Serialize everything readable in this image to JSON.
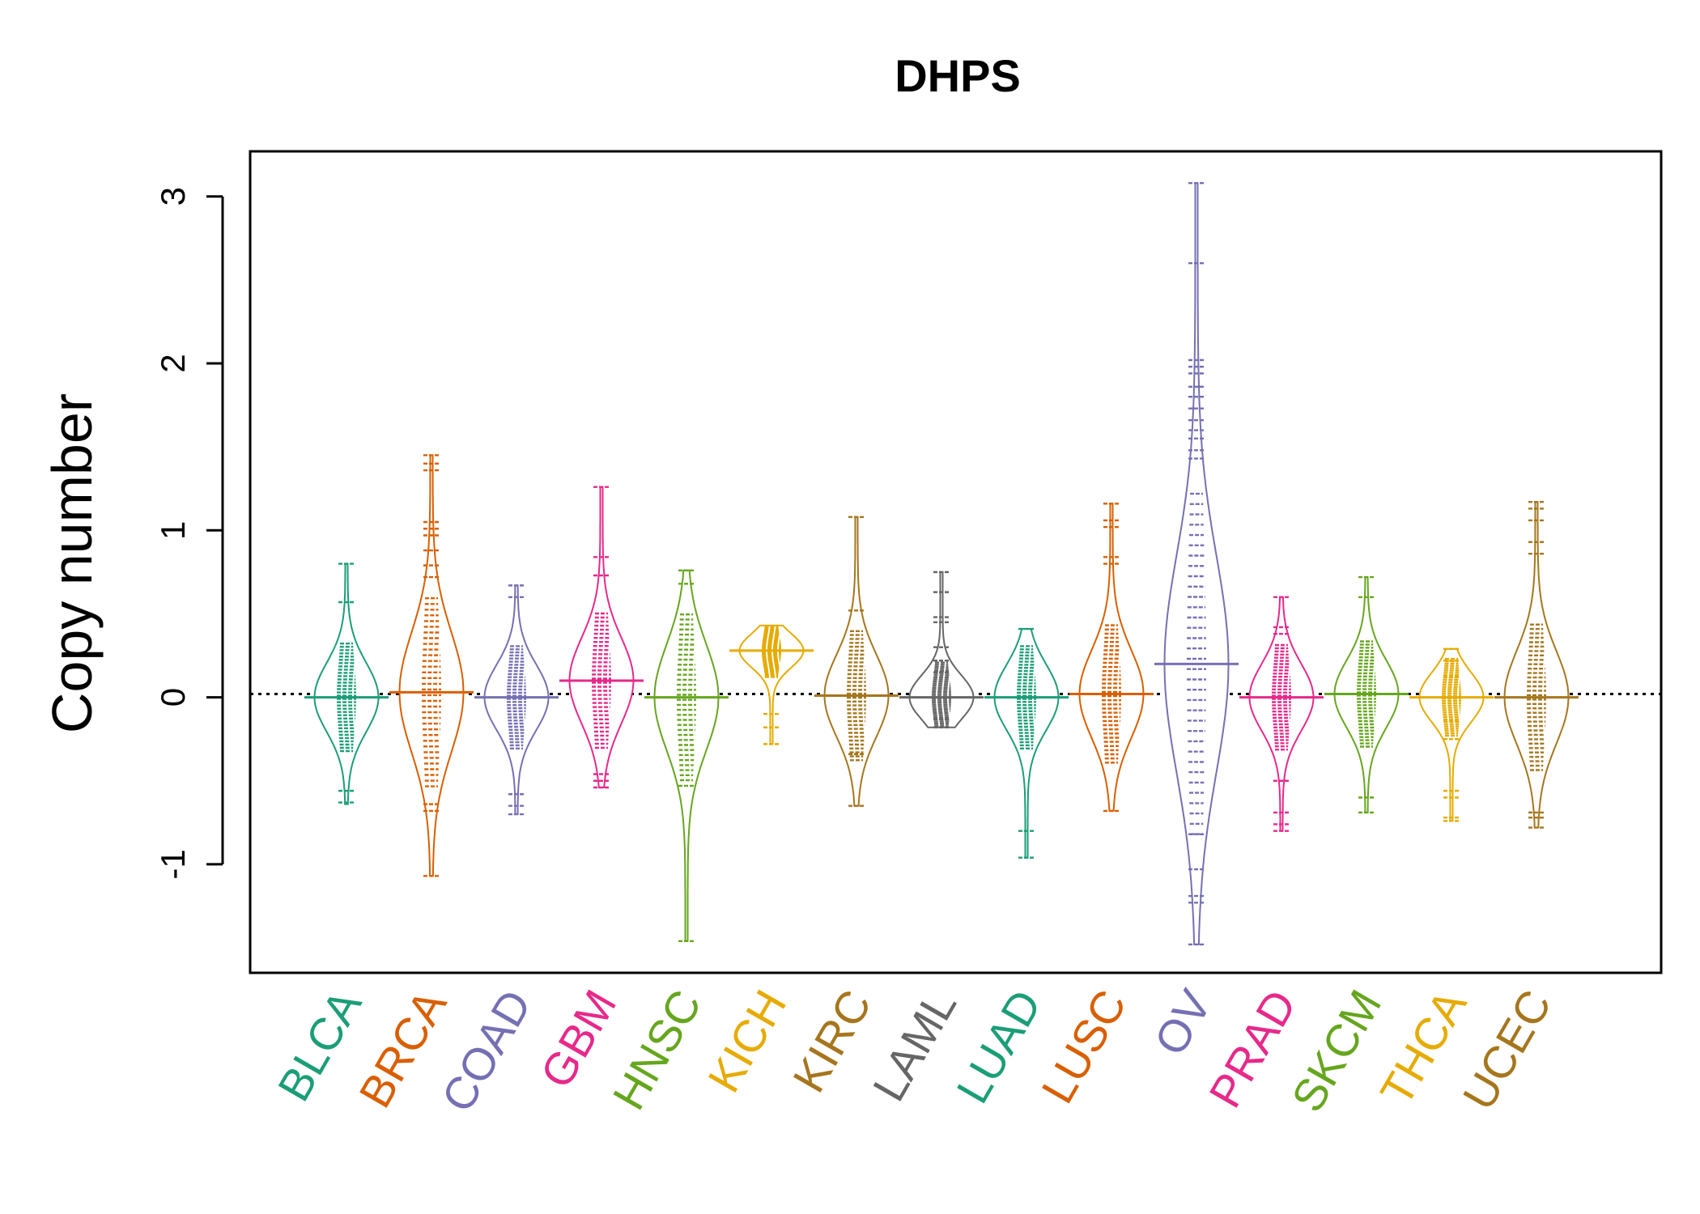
{
  "chart_data": {
    "type": "beanplot",
    "title": "DHPS",
    "xlabel": "",
    "ylabel": "Copy number",
    "ylim": [
      -1.65,
      3.27
    ],
    "yticks": [
      -1,
      0,
      1,
      2,
      3
    ],
    "ytick_labels": [
      "-1",
      "0",
      "1",
      "2",
      "3"
    ],
    "reference_line": 0.02,
    "grid": false,
    "legend": "none",
    "categories": [
      "BLCA",
      "BRCA",
      "COAD",
      "GBM",
      "HNSC",
      "KICH",
      "KIRC",
      "LAML",
      "LUAD",
      "LUSC",
      "OV",
      "PRAD",
      "SKCM",
      "THCA",
      "UCEC"
    ],
    "series": [
      {
        "category": "BLCA",
        "color": "#1B9E77",
        "center": 0.0,
        "min": -0.64,
        "max": 0.8,
        "outliers": [
          0.8,
          0.57,
          -0.56,
          -0.63
        ]
      },
      {
        "category": "BRCA",
        "color": "#D95F02",
        "center": 0.03,
        "min": -1.07,
        "max": 1.45,
        "outliers": [
          1.45,
          1.4,
          1.36,
          1.05,
          1.01,
          0.97,
          0.88,
          0.79,
          0.72,
          -0.64,
          -0.68,
          -1.07
        ]
      },
      {
        "category": "COAD",
        "color": "#7570B3",
        "center": 0.0,
        "min": -0.7,
        "max": 0.67,
        "outliers": [
          0.67,
          0.6,
          -0.58,
          -0.65,
          -0.7
        ]
      },
      {
        "category": "GBM",
        "color": "#E7298A",
        "center": 0.1,
        "min": -0.54,
        "max": 1.26,
        "outliers": [
          1.26,
          0.84,
          0.73,
          -0.46,
          -0.5,
          -0.54
        ]
      },
      {
        "category": "HNSC",
        "color": "#66A61E",
        "center": 0.0,
        "min": -1.46,
        "max": 0.76,
        "outliers": [
          0.76,
          0.68,
          -0.53,
          -1.46
        ]
      },
      {
        "category": "KICH",
        "color": "#E6AB02",
        "center": 0.28,
        "min": -0.28,
        "max": 0.43,
        "outliers": [
          -0.1,
          -0.18,
          -0.28
        ]
      },
      {
        "category": "KIRC",
        "color": "#A6761D",
        "center": 0.01,
        "min": -0.65,
        "max": 1.08,
        "outliers": [
          1.08,
          0.52,
          -0.34,
          -0.65
        ]
      },
      {
        "category": "LAML",
        "color": "#666666",
        "center": 0.0,
        "min": -0.18,
        "max": 0.75,
        "outliers": [
          0.75,
          0.63,
          0.48,
          0.45,
          0.3,
          0.22,
          0.15,
          -0.13,
          -0.18
        ]
      },
      {
        "category": "LUAD",
        "color": "#1B9E77",
        "center": 0.0,
        "min": -0.96,
        "max": 0.41,
        "outliers": [
          0.41,
          -0.8,
          -0.96
        ]
      },
      {
        "category": "LUSC",
        "color": "#D95F02",
        "center": 0.02,
        "min": -0.68,
        "max": 1.16,
        "outliers": [
          1.16,
          1.06,
          1.02,
          0.84,
          0.8,
          -0.68
        ]
      },
      {
        "category": "OV",
        "color": "#7570B3",
        "center": 0.2,
        "min": -1.48,
        "max": 3.08,
        "outliers": [
          3.08,
          2.6,
          2.02,
          1.98,
          1.94,
          1.86,
          1.8,
          1.73,
          1.66,
          1.6,
          1.55,
          1.48,
          1.43,
          -0.82,
          -1.03,
          -1.19,
          -1.23,
          -1.48
        ]
      },
      {
        "category": "PRAD",
        "color": "#E7298A",
        "center": 0.0,
        "min": -0.8,
        "max": 0.6,
        "outliers": [
          0.6,
          0.42,
          0.38,
          -0.5,
          -0.69,
          -0.76,
          -0.8
        ]
      },
      {
        "category": "SKCM",
        "color": "#66A61E",
        "center": 0.02,
        "min": -0.69,
        "max": 0.72,
        "outliers": [
          0.72,
          0.6,
          -0.6,
          -0.69
        ]
      },
      {
        "category": "THCA",
        "color": "#E6AB02",
        "center": 0.0,
        "min": -0.74,
        "max": 0.29,
        "outliers": [
          0.29,
          0.22,
          0.12,
          -0.14,
          -0.25,
          -0.56,
          -0.6,
          -0.72,
          -0.74
        ]
      },
      {
        "category": "UCEC",
        "color": "#A6761D",
        "center": 0.0,
        "min": -0.78,
        "max": 1.17,
        "outliers": [
          1.17,
          1.13,
          1.06,
          0.93,
          0.86,
          -0.69,
          -0.72,
          -0.78
        ]
      }
    ]
  }
}
